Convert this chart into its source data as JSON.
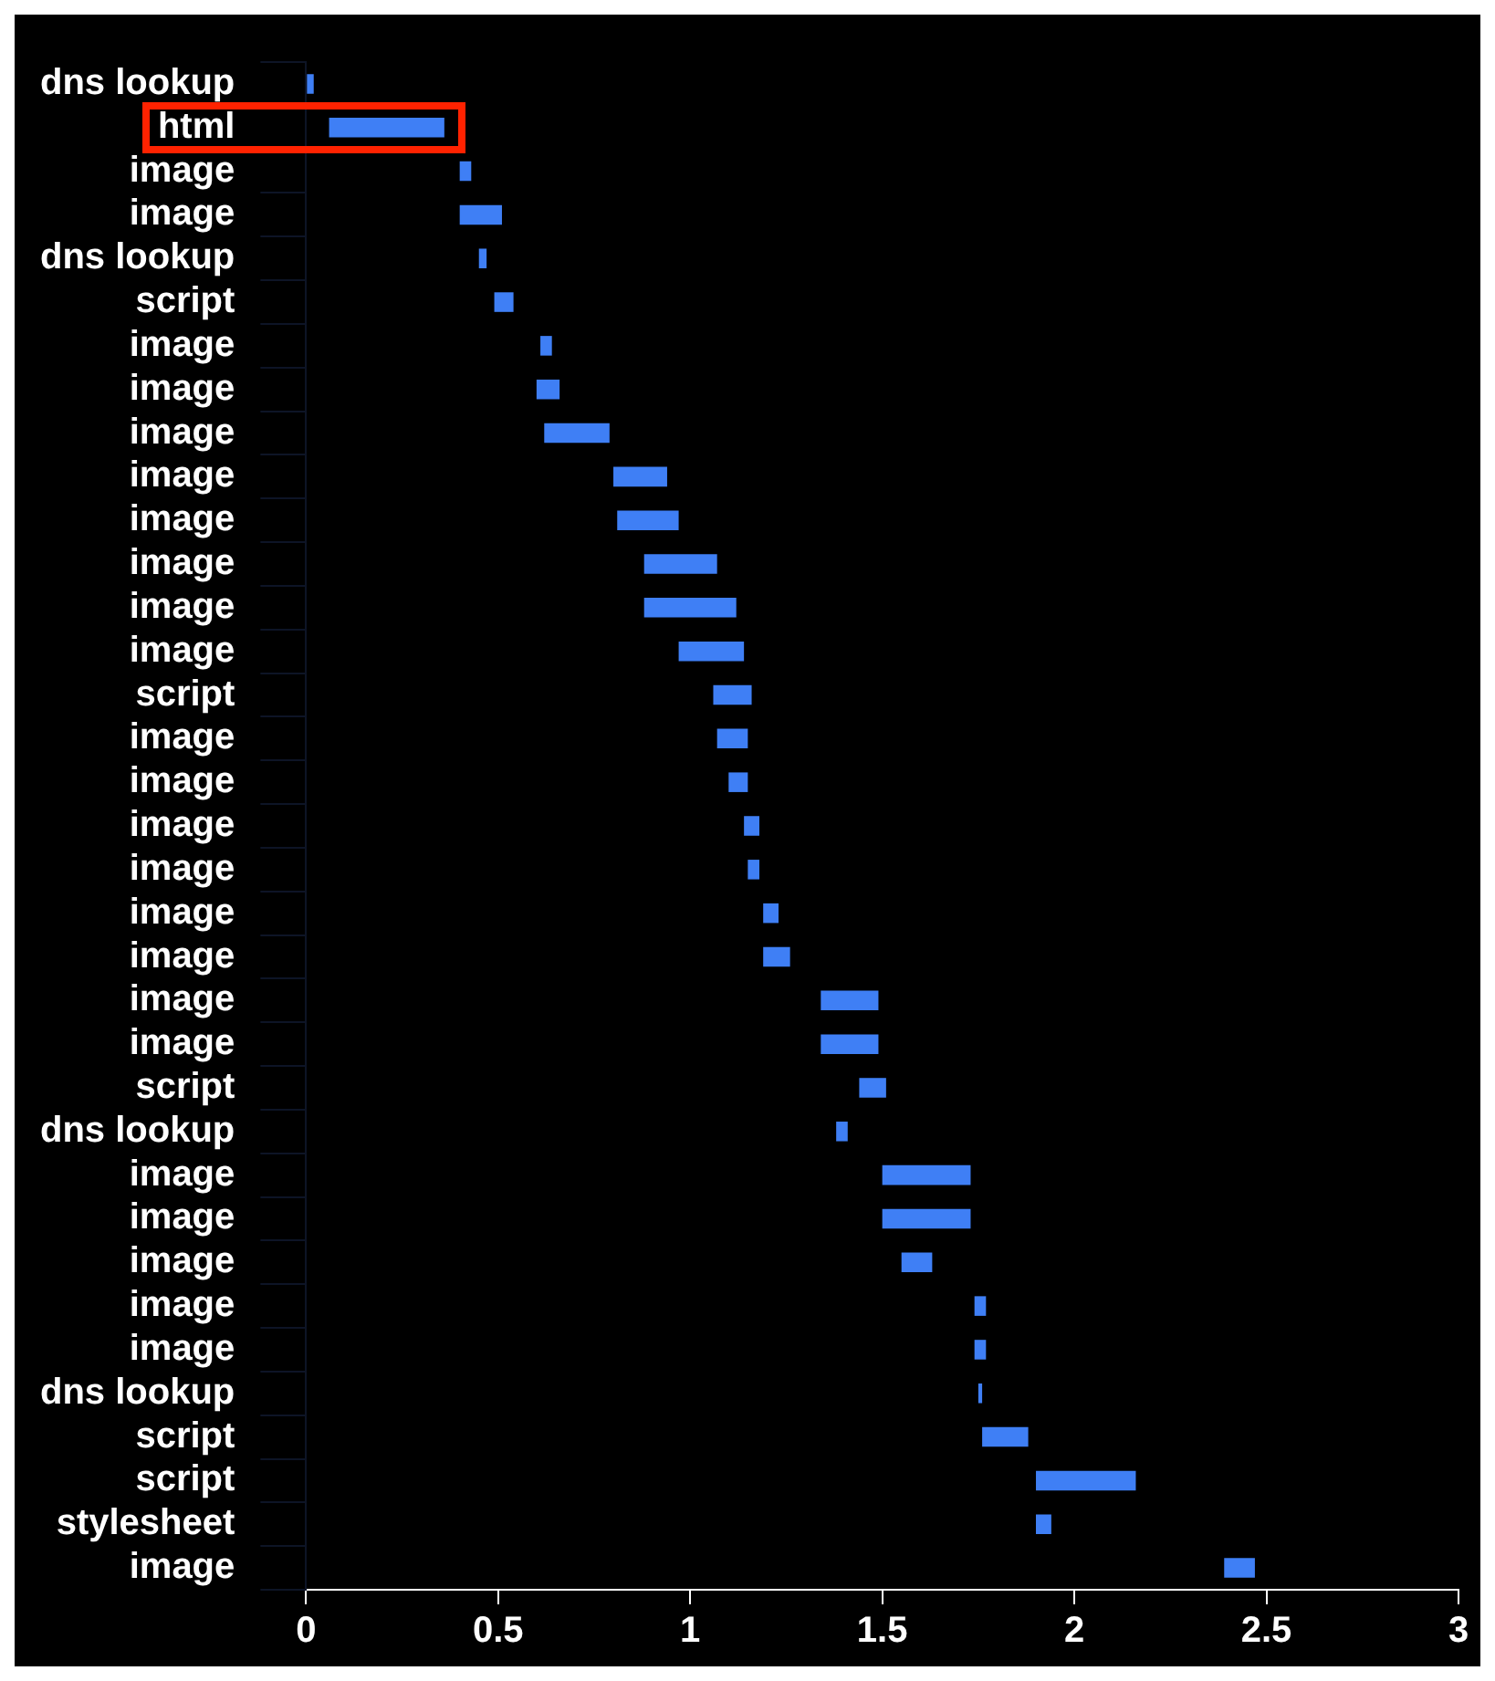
{
  "chart_data": {
    "type": "bar",
    "orientation": "horizontal",
    "categories": [
      "dns lookup",
      "html",
      "image",
      "image",
      "dns lookup",
      "script",
      "image",
      "image",
      "image",
      "image",
      "image",
      "image",
      "image",
      "image",
      "script",
      "image",
      "image",
      "image",
      "image",
      "image",
      "image",
      "image",
      "image",
      "script",
      "dns lookup",
      "image",
      "image",
      "image",
      "image",
      "image",
      "dns lookup",
      "script",
      "script",
      "stylesheet",
      "image"
    ],
    "base": [
      0,
      0.06,
      0.4,
      0.4,
      0.45,
      0.49,
      0.61,
      0.6,
      0.62,
      0.8,
      0.81,
      0.88,
      0.88,
      0.97,
      1.06,
      1.07,
      1.1,
      1.14,
      1.15,
      1.19,
      1.19,
      1.34,
      1.34,
      1.44,
      1.38,
      1.5,
      1.5,
      1.55,
      1.74,
      1.74,
      1.75,
      1.76,
      1.9,
      1.9,
      2.39
    ],
    "values": [
      0.02,
      0.3,
      0.03,
      0.11,
      0.02,
      0.05,
      0.03,
      0.06,
      0.17,
      0.14,
      0.16,
      0.19,
      0.24,
      0.17,
      0.1,
      0.08,
      0.05,
      0.04,
      0.03,
      0.04,
      0.07,
      0.15,
      0.15,
      0.07,
      0.03,
      0.23,
      0.23,
      0.08,
      0.03,
      0.03,
      0.01,
      0.12,
      0.26,
      0.04,
      0.08
    ],
    "color": "#3f7ff5",
    "xlim": [
      0,
      3
    ],
    "xticks": [
      0,
      0.5,
      1,
      1.5,
      2,
      2.5,
      3
    ],
    "grid": false,
    "legend": false
  }
}
